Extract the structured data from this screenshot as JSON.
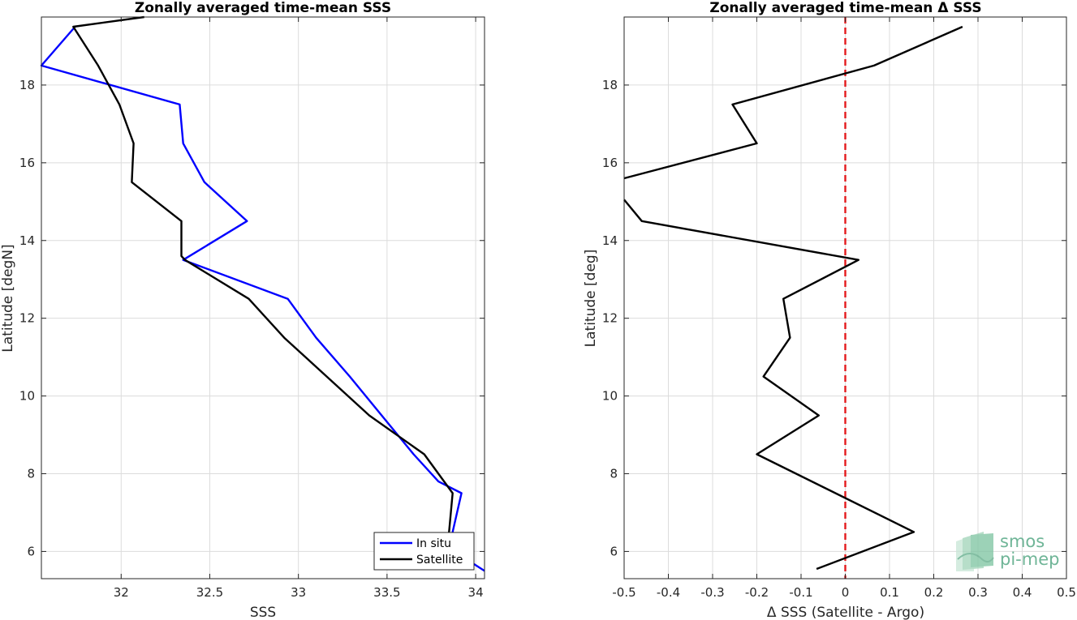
{
  "chart_data": [
    {
      "type": "line",
      "title": "Zonally averaged time-mean SSS",
      "xlabel": "SSS",
      "ylabel": "Latitude [degN]",
      "xlim": [
        31.55,
        34.05
      ],
      "ylim": [
        5.3,
        19.75
      ],
      "xticks": [
        "32",
        "32.5",
        "33",
        "33.5",
        "34"
      ],
      "yticks": [
        "6",
        "8",
        "10",
        "12",
        "14",
        "16",
        "18"
      ],
      "grid": true,
      "legend_position": "bottom-right",
      "series": [
        {
          "name": "In situ",
          "color": "#0000ff",
          "x": [
            31.74,
            31.55,
            32.33,
            32.35,
            32.47,
            32.71,
            32.35,
            32.94,
            33.1,
            33.29,
            33.47,
            33.65,
            33.79,
            33.92,
            33.87,
            33.88,
            34.05
          ],
          "y": [
            19.5,
            18.5,
            17.5,
            16.5,
            15.5,
            14.5,
            13.5,
            12.5,
            11.5,
            10.5,
            9.5,
            8.5,
            7.8,
            7.5,
            6.5,
            6.0,
            5.5
          ]
        },
        {
          "name": "Satellite",
          "color": "#000000",
          "x": [
            32.13,
            31.73,
            31.87,
            31.99,
            32.07,
            32.06,
            32.34,
            32.34,
            32.36,
            32.72,
            32.92,
            33.4,
            33.71,
            33.87,
            33.85,
            33.88
          ],
          "y": [
            19.75,
            19.5,
            18.5,
            17.5,
            16.5,
            15.5,
            14.5,
            13.6,
            13.5,
            12.5,
            11.5,
            9.5,
            8.5,
            7.5,
            6.5,
            5.6
          ]
        }
      ]
    },
    {
      "type": "line",
      "title": "Zonally averaged time-mean Δ SSS",
      "xlabel": "Δ SSS (Satellite - Argo)",
      "ylabel": "Latitude [deg]",
      "xlim": [
        -0.5,
        0.5
      ],
      "ylim": [
        5.3,
        19.75
      ],
      "xticks": [
        "-0.5",
        "-0.4",
        "-0.3",
        "-0.2",
        "-0.1",
        "0",
        "0.1",
        "0.2",
        "0.3",
        "0.4",
        "0.5"
      ],
      "yticks": [
        "6",
        "8",
        "10",
        "12",
        "14",
        "16",
        "18"
      ],
      "grid": true,
      "series": [
        {
          "color": "#000000",
          "x": [
            0.265,
            0.065,
            -0.255,
            -0.2,
            -0.5
          ],
          "y": [
            19.5,
            18.5,
            17.5,
            16.5,
            15.6
          ]
        },
        {
          "color": "#000000",
          "x": [
            -0.5,
            -0.46,
            0.03,
            -0.14,
            -0.125,
            -0.185,
            -0.06,
            -0.2,
            0.155,
            -0.065
          ],
          "y": [
            15.05,
            14.5,
            13.5,
            12.5,
            11.5,
            10.5,
            9.5,
            8.5,
            6.5,
            5.55
          ]
        }
      ],
      "reference_line": {
        "x": 0,
        "color": "#e41a1c",
        "style": "dashed"
      }
    }
  ],
  "logo": {
    "line1": "smos",
    "line2": "pi-mep"
  }
}
